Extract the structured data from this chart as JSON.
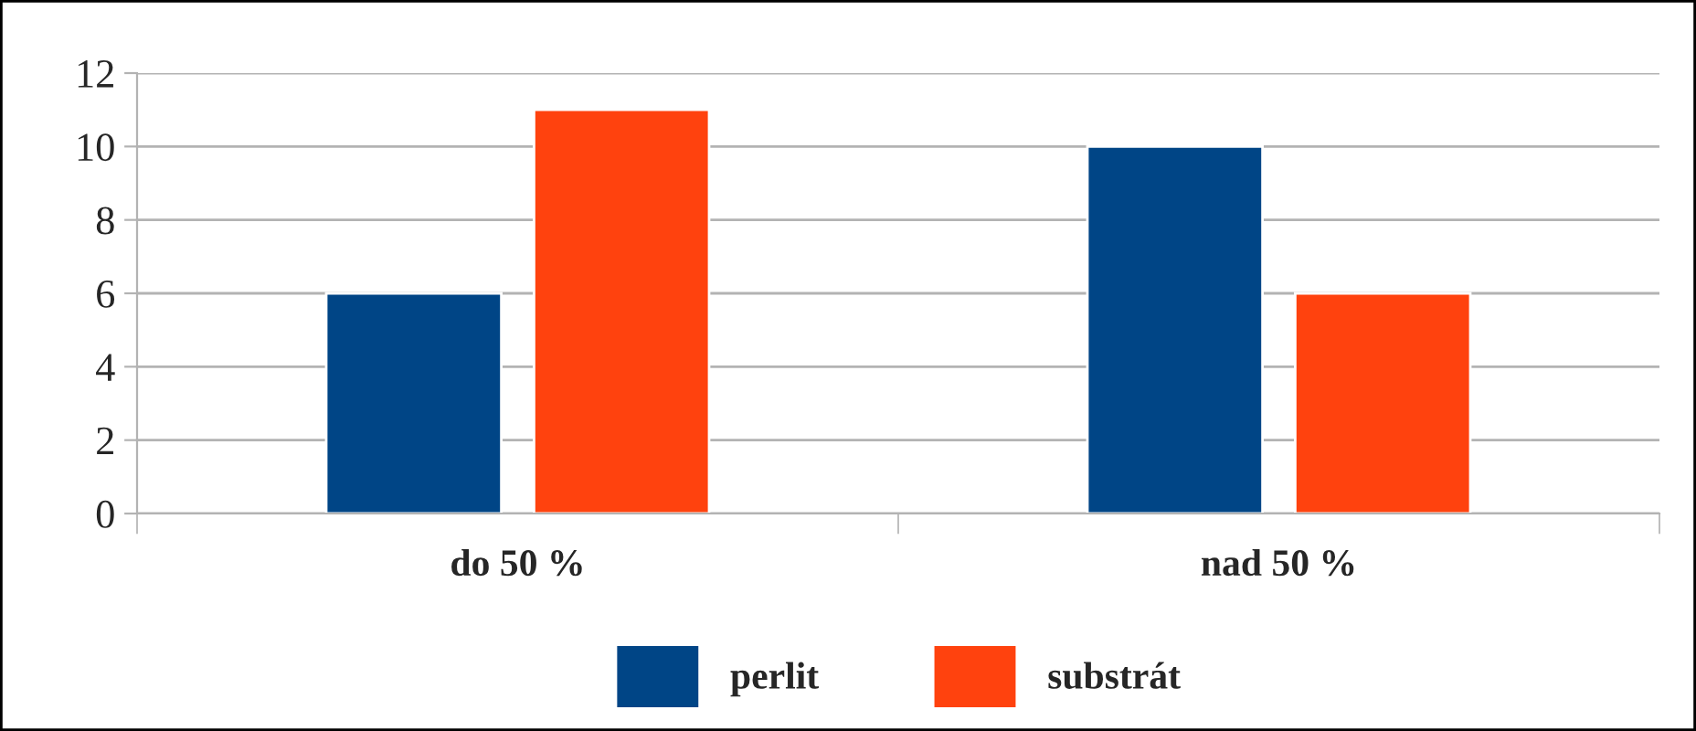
{
  "chart_data": {
    "type": "bar",
    "categories": [
      "do 50 %",
      "nad 50 %"
    ],
    "series": [
      {
        "name": "perlit",
        "color": "#004586",
        "values": [
          6,
          10
        ]
      },
      {
        "name": "substrát",
        "color": "#ff420e",
        "values": [
          11,
          6
        ]
      }
    ],
    "ylim": [
      0,
      12
    ],
    "yticks": [
      0,
      2,
      4,
      6,
      8,
      10,
      12
    ],
    "grid": "y",
    "legend": "bottom"
  }
}
